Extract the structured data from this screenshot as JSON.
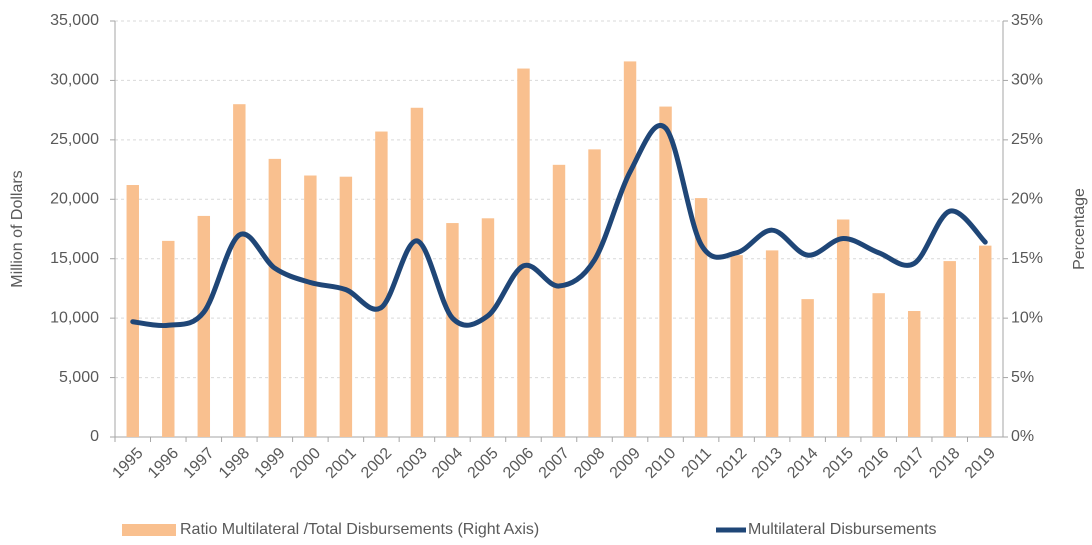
{
  "chart_data": {
    "type": "combo",
    "categories": [
      "1995",
      "1996",
      "1997",
      "1998",
      "1999",
      "2000",
      "2001",
      "2002",
      "2003",
      "2004",
      "2005",
      "2006",
      "2007",
      "2008",
      "2009",
      "2010",
      "2011",
      "2012",
      "2013",
      "2014",
      "2015",
      "2016",
      "2017",
      "2018",
      "2019"
    ],
    "y_label": "Million of Dollars",
    "y2_label": "Percentage",
    "ylim": [
      0,
      35000
    ],
    "yticks": [
      0,
      {
        "value": 5000,
        "label": "5,000"
      },
      {
        "value": 10000,
        "label": "10,000"
      },
      {
        "value": 15000,
        "label": "15,000"
      },
      {
        "value": 20000,
        "label": "20,000"
      },
      {
        "value": 25000,
        "label": "25,000"
      },
      {
        "value": 30000,
        "label": "30,000"
      },
      {
        "value": 35000,
        "label": "35,000"
      }
    ],
    "y2lim": [
      0,
      35
    ],
    "y2ticks": [
      {
        "value": 0,
        "label": "0%"
      },
      {
        "value": 5,
        "label": "5%"
      },
      {
        "value": 10,
        "label": "10%"
      },
      {
        "value": 15,
        "label": "15%"
      },
      {
        "value": 20,
        "label": "20%"
      },
      {
        "value": 25,
        "label": "25%"
      },
      {
        "value": 30,
        "label": "30%"
      },
      {
        "value": 35,
        "label": "35%"
      }
    ],
    "grid": true,
    "legend": "bottom",
    "series": [
      {
        "name": "Ratio Multilateral /Total Disbursements (Right Axis)",
        "type": "bar",
        "axis": "y2",
        "color": "#f9c08f",
        "values": [
          21.2,
          16.5,
          18.6,
          28.0,
          23.4,
          22.0,
          21.9,
          25.7,
          27.7,
          18.0,
          18.4,
          31.0,
          22.9,
          24.2,
          31.6,
          27.8,
          20.1,
          15.3,
          15.7,
          11.6,
          18.3,
          12.1,
          10.6,
          14.8,
          16.1
        ]
      },
      {
        "name": "Multilateral Disbursements",
        "type": "line",
        "color": "#1f4677",
        "values": [
          9700,
          9400,
          10500,
          17000,
          14200,
          13000,
          12400,
          10900,
          16500,
          10000,
          10200,
          14400,
          12700,
          14900,
          22300,
          26000,
          16200,
          15500,
          17400,
          15300,
          16700,
          15500,
          14600,
          19000,
          16400
        ]
      }
    ]
  }
}
